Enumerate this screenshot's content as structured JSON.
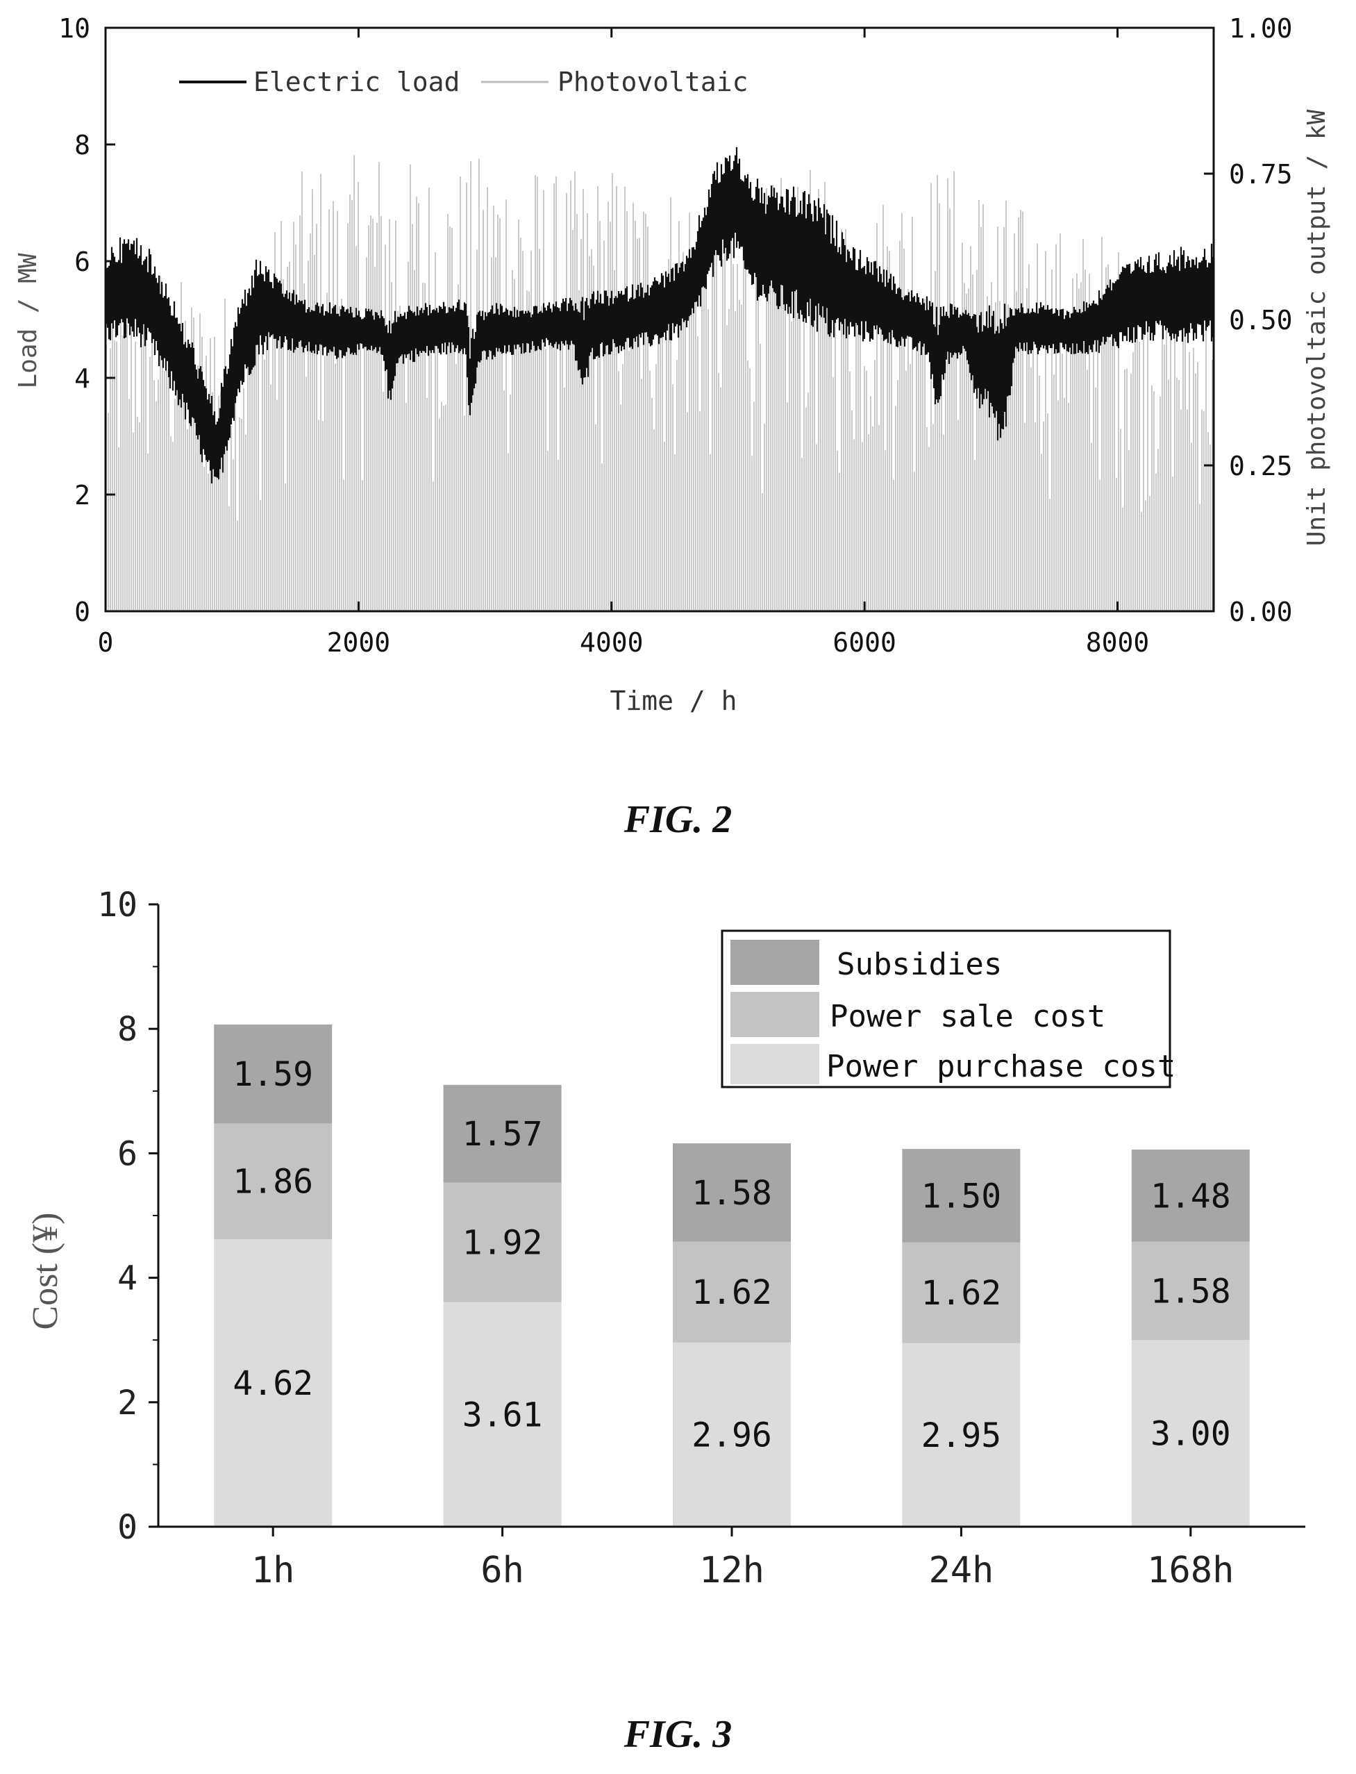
{
  "captions": {
    "fig2": "FIG. 2",
    "fig3": "FIG. 3"
  },
  "chart_data": [
    {
      "type": "line",
      "x": [
        0,
        100,
        200,
        300,
        400,
        500,
        600,
        700,
        800,
        880,
        950,
        1050,
        1200,
        1300,
        1400,
        1500,
        1600,
        1800,
        2000,
        2200,
        2250,
        2300,
        2500,
        2700,
        2850,
        2880,
        2950,
        3100,
        3300,
        3500,
        3700,
        3780,
        3850,
        4000,
        4300,
        4600,
        4800,
        4900,
        5000,
        5050,
        5200,
        5400,
        5600,
        5750,
        5900,
        6100,
        6300,
        6500,
        6580,
        6650,
        6800,
        6900,
        7000,
        7050,
        7100,
        7200,
        7400,
        7600,
        7800,
        8000,
        8200,
        8400,
        8600,
        8760
      ],
      "x_ticks": [
        "0",
        "2000",
        "4000",
        "6000",
        "8000"
      ],
      "xlabel": "Time / h",
      "xlim": [
        0,
        8760
      ],
      "ylabel_left": "Load / MW",
      "ylim_left": [
        0,
        10
      ],
      "y_ticks_left": [
        "0",
        "2",
        "4",
        "6",
        "8",
        "10"
      ],
      "ylabel_right": "Unit photovoltaic output / kW",
      "ylim_right": [
        0,
        1
      ],
      "y_ticks_right": [
        "0.00",
        "0.25",
        "0.50",
        "0.75",
        "1.00"
      ],
      "series": [
        {
          "name": "Electric load",
          "axis": "left",
          "color": "#111111",
          "low": [
            4.6,
            4.6,
            4.6,
            4.5,
            4.2,
            3.8,
            3.4,
            2.9,
            2.3,
            1.9,
            2.6,
            3.6,
            4.3,
            4.5,
            4.5,
            4.4,
            4.4,
            4.3,
            4.4,
            4.3,
            3.3,
            4.2,
            4.3,
            4.4,
            4.4,
            3.1,
            4.2,
            4.3,
            4.4,
            4.5,
            4.4,
            3.6,
            4.3,
            4.4,
            4.5,
            4.7,
            5.6,
            6.0,
            6.0,
            5.6,
            5.2,
            5.0,
            4.8,
            4.6,
            4.6,
            4.6,
            4.5,
            4.3,
            3.2,
            4.2,
            4.4,
            3.4,
            3.3,
            2.8,
            2.8,
            4.4,
            4.4,
            4.4,
            4.4,
            4.5,
            4.6,
            4.6,
            4.6,
            4.6
          ],
          "high": [
            6.2,
            6.4,
            6.5,
            6.4,
            6.0,
            5.6,
            5.0,
            4.6,
            3.9,
            3.5,
            4.3,
            5.3,
            6.1,
            5.9,
            5.6,
            5.5,
            5.3,
            5.3,
            5.2,
            5.2,
            5.0,
            5.2,
            5.3,
            5.3,
            5.4,
            4.7,
            5.2,
            5.3,
            5.2,
            5.3,
            5.4,
            5.4,
            5.5,
            5.5,
            5.7,
            6.1,
            7.6,
            7.9,
            8.0,
            7.7,
            7.3,
            7.3,
            7.2,
            6.8,
            6.3,
            6.0,
            5.6,
            5.4,
            5.2,
            5.3,
            5.2,
            5.2,
            5.3,
            5.3,
            5.3,
            5.3,
            5.3,
            5.2,
            5.4,
            5.9,
            6.1,
            6.2,
            6.3,
            6.3
          ]
        },
        {
          "name": "Photovoltaic",
          "axis": "right",
          "color": "#bdbdbd",
          "daily_peak": [
            0.55,
            0.55,
            0.6,
            0.6,
            0.58,
            0.55,
            0.55,
            0.55,
            0.55,
            0.6,
            0.7,
            0.75,
            0.78,
            0.75,
            0.78,
            0.8,
            0.8,
            0.78,
            0.77,
            0.76,
            0.77,
            0.78,
            0.8,
            0.79,
            0.78,
            0.76,
            0.75,
            0.76,
            0.76,
            0.77,
            0.75,
            0.74,
            0.74,
            0.75,
            0.75,
            0.72,
            0.7,
            0.72,
            0.74,
            0.76,
            0.76,
            0.74,
            0.7,
            0.7,
            0.72,
            0.74,
            0.76,
            0.77,
            0.77,
            0.76,
            0.74,
            0.72,
            0.7,
            0.68,
            0.66,
            0.66,
            0.66,
            0.65,
            0.62,
            0.6,
            0.58,
            0.56,
            0.55,
            0.55
          ]
        }
      ],
      "legend_position": "top-left",
      "grid": false
    },
    {
      "type": "bar",
      "stacked": true,
      "categories": [
        "1h",
        "6h",
        "12h",
        "24h",
        "168h"
      ],
      "ylabel": "Cost (¥)",
      "ylim": [
        0,
        10
      ],
      "y_ticks": [
        "0",
        "2",
        "4",
        "6",
        "8",
        "10"
      ],
      "series": [
        {
          "name": "Power purchase cost",
          "values": [
            4.62,
            3.61,
            2.96,
            2.95,
            3.0
          ],
          "labels": [
            "4.62",
            "3.61",
            "2.96",
            "2.95",
            "3.00"
          ],
          "color": "#dcdcdc"
        },
        {
          "name": "Power sale cost",
          "values": [
            1.86,
            1.92,
            1.62,
            1.62,
            1.58
          ],
          "labels": [
            "1.86",
            "1.92",
            "1.62",
            "1.62",
            "1.58"
          ],
          "color": "#c3c3c3"
        },
        {
          "name": "Subsidies",
          "values": [
            1.59,
            1.57,
            1.58,
            1.5,
            1.48
          ],
          "labels": [
            "1.59",
            "1.57",
            "1.58",
            "1.50",
            "1.48"
          ],
          "color": "#a6a6a6"
        }
      ],
      "legend_entries": [
        "Subsidies",
        "Power sale cost",
        "Power purchase cost"
      ],
      "legend_position": "top-right",
      "grid": false
    }
  ]
}
